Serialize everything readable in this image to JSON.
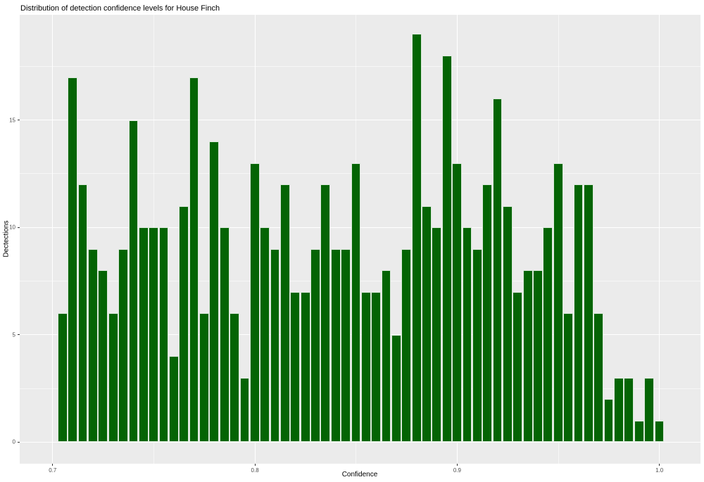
{
  "title": "Distribution of detection confidence levels for House Finch",
  "chart_data": {
    "type": "bar",
    "subtype": "histogram",
    "title": "Distribution of detection confidence levels for House Finch",
    "xlabel": "Confidence",
    "ylabel": "Dectections",
    "x_tick_labels": [
      "0.7",
      "0.8",
      "0.9",
      "1.0"
    ],
    "x_tick_values": [
      0.7,
      0.8,
      0.9,
      1.0
    ],
    "y_tick_labels": [
      "0",
      "5",
      "10",
      "15"
    ],
    "y_tick_values": [
      0,
      5,
      10,
      15
    ],
    "x_minor_grid": [
      0.75,
      0.85,
      0.95
    ],
    "y_minor_grid": [
      2.5,
      7.5,
      12.5,
      17.5
    ],
    "xlim": [
      0.6837,
      1.0203
    ],
    "ylim": [
      -1.0,
      19.9
    ],
    "bin_start": 0.7025,
    "bin_width": 0.005,
    "counts": [
      6,
      17,
      12,
      9,
      8,
      6,
      9,
      15,
      10,
      10,
      10,
      4,
      11,
      17,
      6,
      14,
      10,
      6,
      3,
      13,
      10,
      9,
      12,
      7,
      7,
      9,
      12,
      9,
      9,
      13,
      7,
      7,
      8,
      5,
      9,
      19,
      11,
      10,
      18,
      13,
      10,
      9,
      12,
      16,
      11,
      7,
      8,
      8,
      10,
      13,
      6,
      12,
      12,
      6,
      2,
      3,
      3,
      1,
      3,
      1
    ],
    "grid": true,
    "legend": "none",
    "bar_color": "#046404",
    "bar_border_color": "#ffffff",
    "panel_bg": "#ebebeb",
    "grid_color": "#ffffff",
    "tick_color": "#333333",
    "tick_label_color": "#4d4d4d"
  }
}
